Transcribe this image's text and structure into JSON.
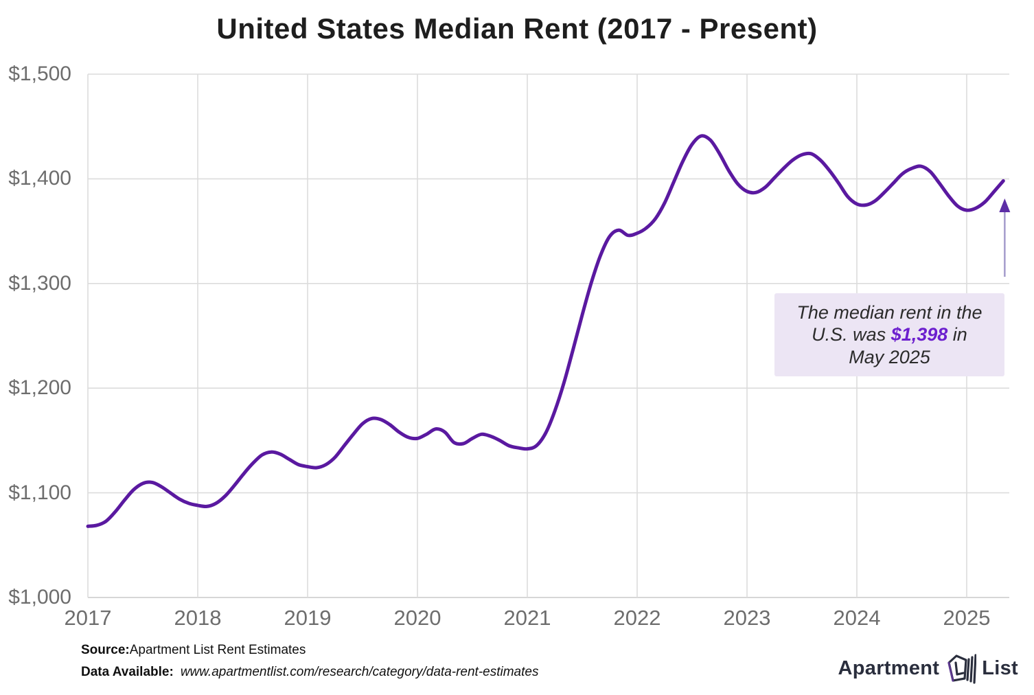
{
  "title": "United States Median Rent (2017 - Present)",
  "annotation": {
    "line1": "The median rent in the",
    "line2_pre": "U.S. was ",
    "value": "$1,398",
    "line2_post": " in",
    "line3": "May 2025"
  },
  "footer": {
    "source_label": "Source:",
    "source_value": "Apartment List Rent Estimates",
    "data_label": "Data Available:",
    "data_value": "www.apartmentlist.com/research/category/data-rent-estimates"
  },
  "logo": {
    "word_left": "Apartment",
    "word_right": "List",
    "icon": "apartment-list-house-icon"
  },
  "colors": {
    "line": "#5a19a0",
    "grid": "#dcdcdc",
    "axis_line": "#c9c9c9",
    "axis_text": "#6d6d6d",
    "title": "#1e1e1e",
    "annotation_bg": "#ece5f4",
    "annotation_value": "#6c1fce",
    "arrow_shaft": "#a79fcd",
    "arrow_head": "#5d2ea6",
    "logo": "#2a2e3d",
    "logo_accent": "#8b44d8"
  },
  "chart_data": {
    "type": "line",
    "title": "United States Median Rent (2017 - Present)",
    "frequency": "monthly",
    "x_start": "2017-01",
    "x_end": "2025-05",
    "x_tick_labels": [
      "2017",
      "2018",
      "2019",
      "2020",
      "2021",
      "2022",
      "2023",
      "2024",
      "2025"
    ],
    "y_tick_labels": [
      "$1,500",
      "$1,400",
      "$1,300",
      "$1,200",
      "$1,100",
      "$1,000"
    ],
    "y_ticks": [
      1500,
      1400,
      1300,
      1200,
      1100,
      1000
    ],
    "ylim": [
      1000,
      1500
    ],
    "grid": true,
    "legend": false,
    "annotation_value": 1398,
    "annotation_month": "May 2025",
    "series": [
      {
        "name": "U.S. median rent ($)",
        "values": [
          1068,
          1069,
          1073,
          1082,
          1093,
          1103,
          1109,
          1110,
          1106,
          1100,
          1094,
          1090,
          1088,
          1087,
          1090,
          1097,
          1107,
          1118,
          1128,
          1136,
          1139,
          1137,
          1132,
          1127,
          1125,
          1124,
          1127,
          1134,
          1145,
          1156,
          1166,
          1171,
          1170,
          1165,
          1158,
          1153,
          1152,
          1156,
          1161,
          1158,
          1148,
          1147,
          1152,
          1156,
          1154,
          1150,
          1145,
          1143,
          1142,
          1145,
          1157,
          1178,
          1205,
          1237,
          1270,
          1301,
          1327,
          1345,
          1351,
          1346,
          1348,
          1353,
          1362,
          1377,
          1397,
          1417,
          1433,
          1441,
          1437,
          1424,
          1408,
          1395,
          1388,
          1387,
          1392,
          1401,
          1410,
          1418,
          1423,
          1424,
          1418,
          1408,
          1396,
          1383,
          1376,
          1375,
          1379,
          1387,
          1396,
          1405,
          1410,
          1412,
          1407,
          1396,
          1384,
          1374,
          1370,
          1372,
          1378,
          1388,
          1398
        ]
      }
    ]
  }
}
